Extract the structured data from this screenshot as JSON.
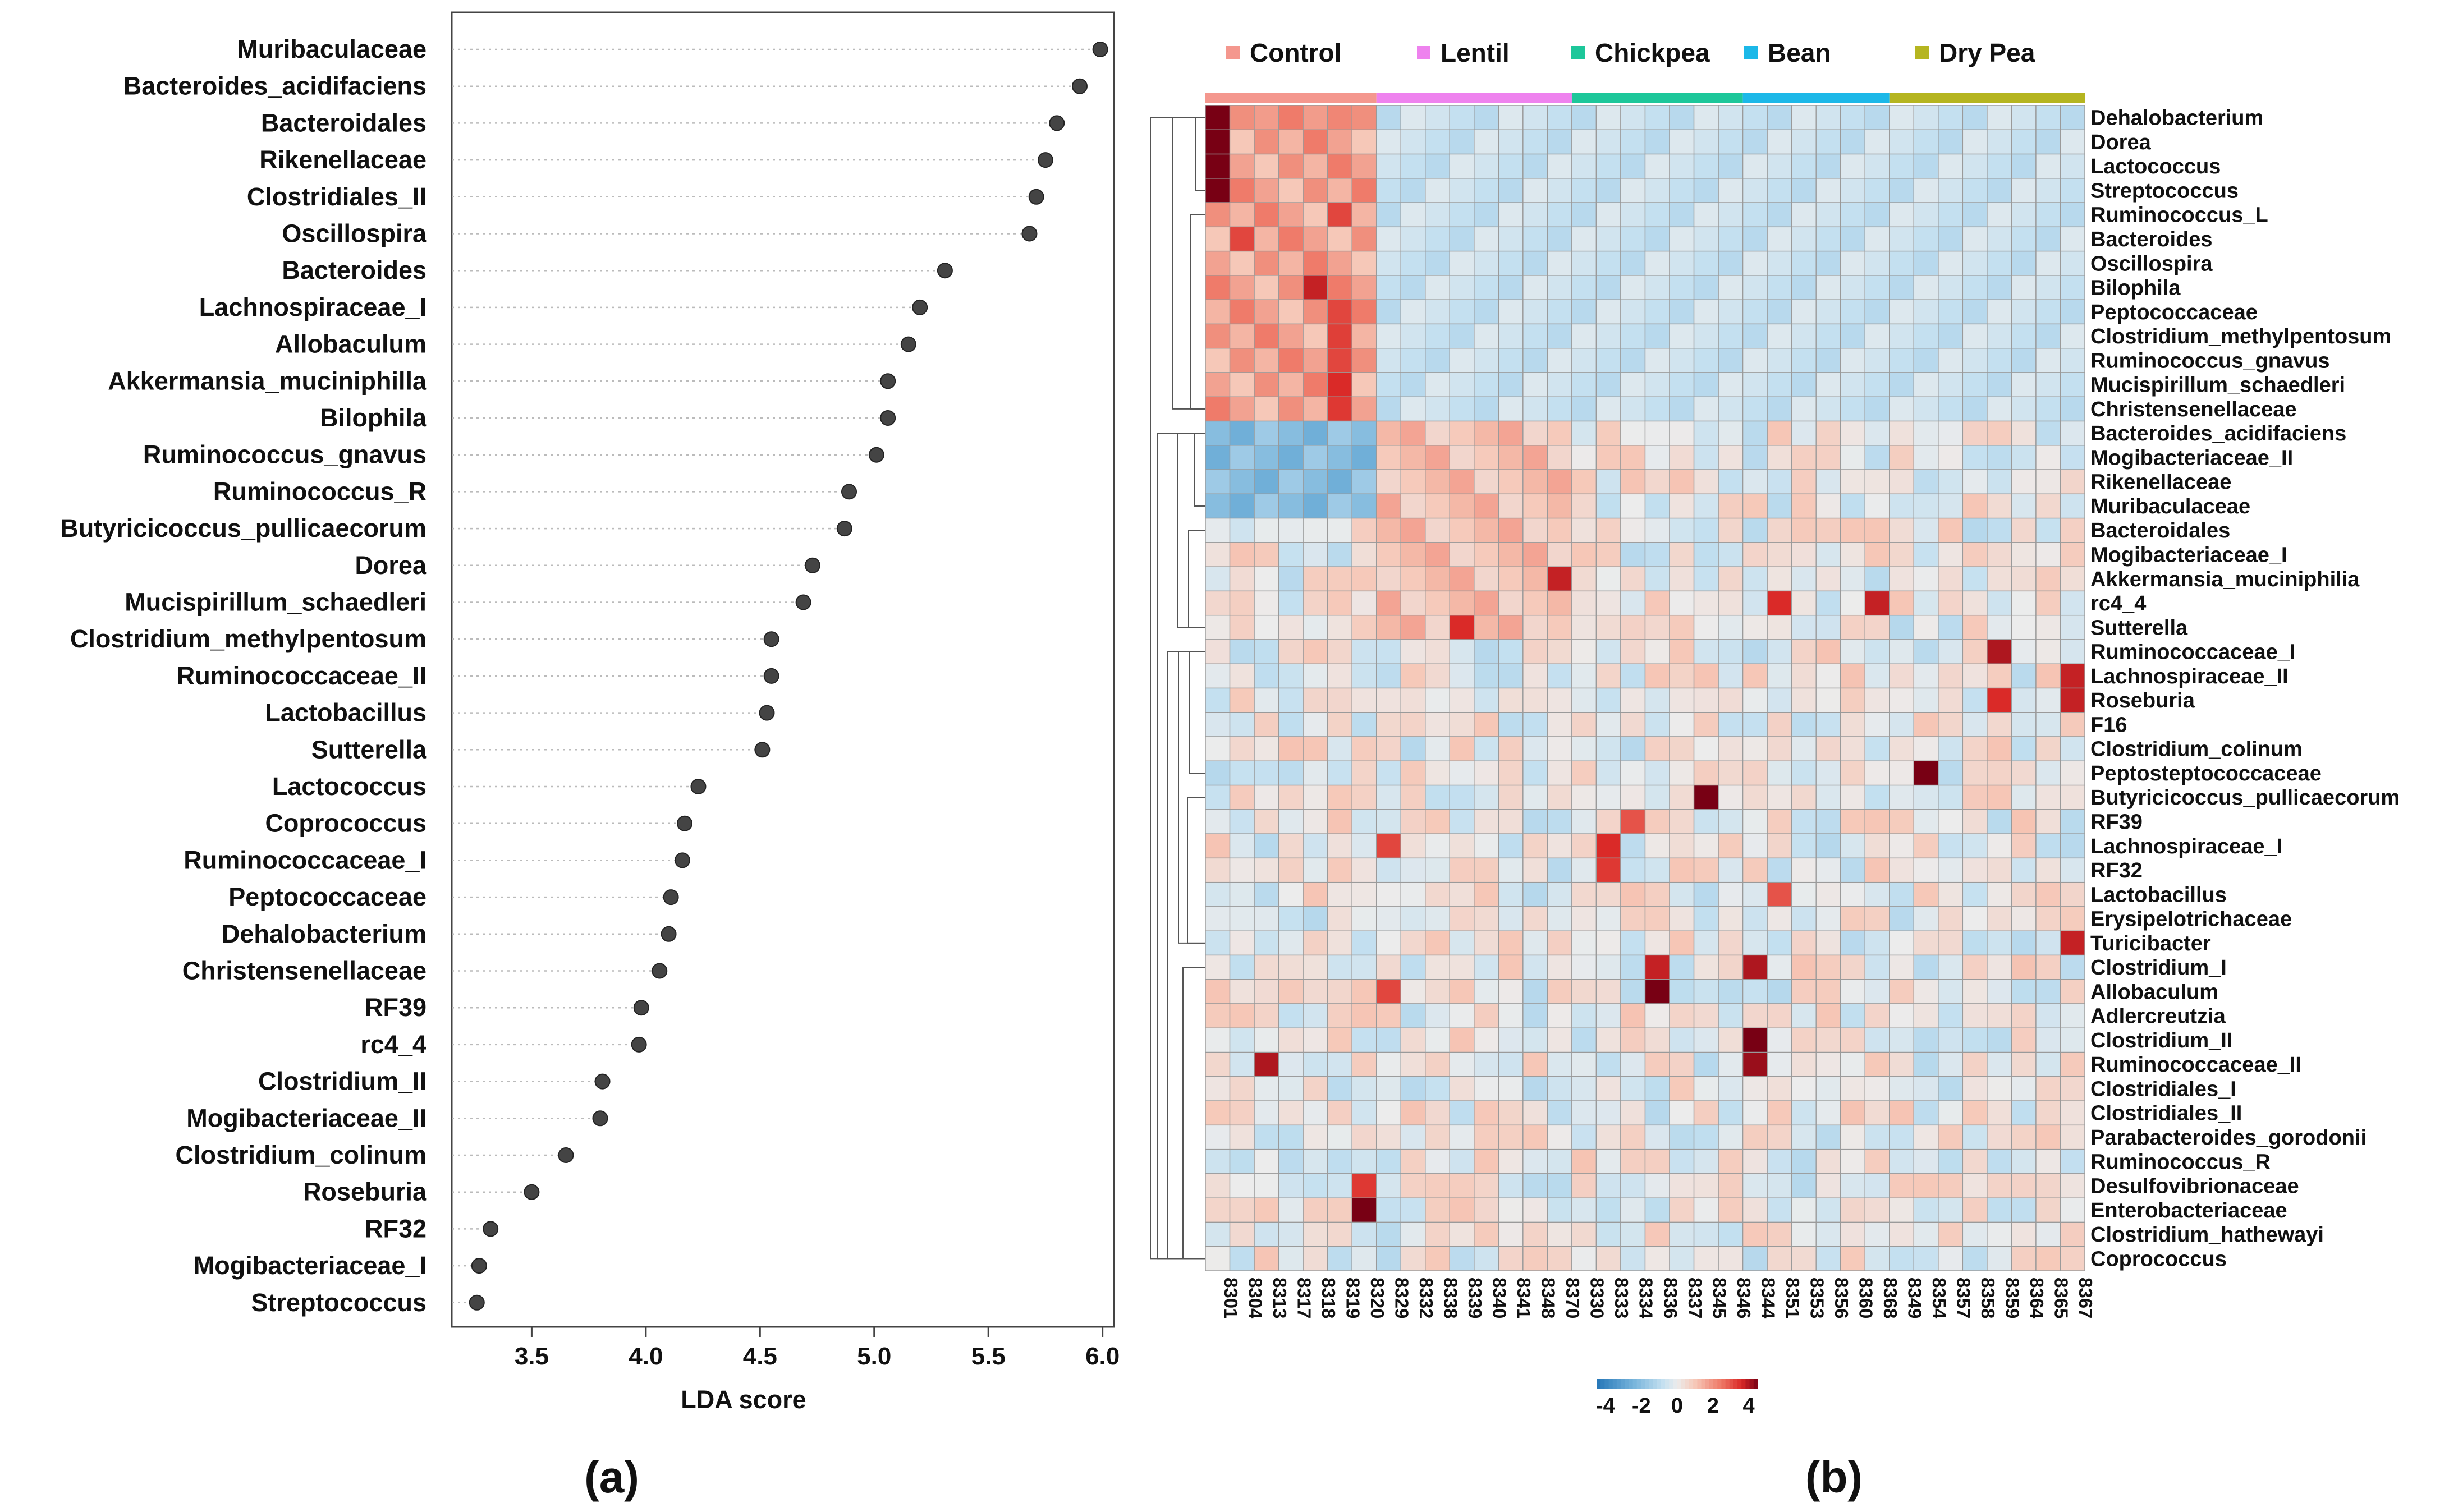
{
  "chart_data": [
    {
      "type": "scatter",
      "panel_label": "(a)",
      "xlabel": "LDA score",
      "ylabel": "",
      "xlim": [
        3.15,
        6.05
      ],
      "xticks": [
        3.5,
        4.0,
        4.5,
        5.0,
        5.5,
        6.0
      ],
      "xtick_labels": [
        "3.5",
        "4.0",
        "4.5",
        "5.0",
        "5.5",
        "6.0"
      ],
      "categories": [
        "Muribaculaceae",
        "Bacteroides_acidifaciens",
        "Bacteroidales",
        "Rikenellaceae",
        "Clostridiales_II",
        "Oscillospira",
        "Bacteroides",
        "Lachnospiraceae_I",
        "Allobaculum",
        "Akkermansia_muciniphilla",
        "Bilophila",
        "Ruminococcus_gnavus",
        "Ruminococcus_R",
        "Butyricicoccus_pullicaecorum",
        "Dorea",
        "Mucispirillum_schaedleri",
        "Clostridium_methylpentosum",
        "Ruminococcaceae_II",
        "Lactobacillus",
        "Sutterella",
        "Lactococcus",
        "Coprococcus",
        "Ruminococcaceae_I",
        "Peptococcaceae",
        "Dehalobacterium",
        "Christensenellaceae",
        "RF39",
        "rc4_4",
        "Clostridium_II",
        "Mogibacteriaceae_II",
        "Clostridium_colinum",
        "Roseburia",
        "RF32",
        "Mogibacteriaceae_I",
        "Streptococcus"
      ],
      "values": [
        5.99,
        5.9,
        5.8,
        5.75,
        5.71,
        5.68,
        5.31,
        5.2,
        5.15,
        5.06,
        5.06,
        5.01,
        4.89,
        4.87,
        4.73,
        4.69,
        4.55,
        4.55,
        4.53,
        4.51,
        4.23,
        4.17,
        4.16,
        4.11,
        4.1,
        4.06,
        3.98,
        3.97,
        3.81,
        3.8,
        3.65,
        3.5,
        3.32,
        3.27,
        3.26
      ],
      "grid": "horizontal dotted"
    },
    {
      "type": "heatmap",
      "panel_label": "(b)",
      "groups": [
        {
          "name": "Control",
          "color": "#F4978E",
          "n": 7
        },
        {
          "name": "Lentil",
          "color": "#EE82EE",
          "n": 8
        },
        {
          "name": "Chickpea",
          "color": "#1DC79A",
          "n": 7
        },
        {
          "name": "Bean",
          "color": "#1CB8E8",
          "n": 6
        },
        {
          "name": "Dry Pea",
          "color": "#B5B520",
          "n": 8
        }
      ],
      "columns": [
        "8301",
        "8304",
        "8313",
        "8317",
        "8318",
        "8319",
        "8320",
        "8329",
        "8332",
        "8338",
        "8339",
        "8340",
        "8341",
        "8348",
        "8370",
        "8330",
        "8333",
        "8334",
        "8336",
        "8337",
        "8345",
        "8346",
        "8344",
        "8351",
        "8353",
        "8356",
        "8360",
        "8368",
        "8349",
        "8354",
        "8357",
        "8358",
        "8359",
        "8364",
        "8365",
        "8367"
      ],
      "rows": [
        "Dehalobacterium",
        "Dorea",
        "Lactococcus",
        "Streptococcus",
        "Ruminococcus_L",
        "Bacteroides",
        "Oscillospira",
        "Bilophila",
        "Peptococcaceae",
        "Clostridium_methylpentosum",
        "Ruminococcus_gnavus",
        "Mucispirillum_schaedleri",
        "Christensenellaceae",
        "Bacteroides_acidifaciens",
        "Mogibacteriaceae_II",
        "Rikenellaceae",
        "Muribaculaceae",
        "Bacteroidales",
        "Mogibacteriaceae_I",
        "Akkermansia_muciniphilia",
        "rc4_4",
        "Sutterella",
        "Ruminococcaceae_I",
        "Lachnospiraceae_II",
        "Roseburia",
        "F16",
        "Clostridium_colinum",
        "Peptosteptococcaceae",
        "Butyricicoccus_pullicaecorum",
        "RF39",
        "Lachnospiraceae_I",
        "RF32",
        "Lactobacillus",
        "Erysipelotrichaceae",
        "Turicibacter",
        "Clostridium_I",
        "Allobaculum",
        "Adlercreutzia",
        "Clostridium_II",
        "Ruminococcaceae_II",
        "Clostridiales_I",
        "Clostridiales_II",
        "Parabacteroides_gorodonii",
        "Ruminococcus_R",
        "Desulfovibrionaceae",
        "Enterobacteriaceae",
        "Clostridium_hathewayi",
        "Coprococcus"
      ],
      "hotspots": [
        {
          "row": 0,
          "col": 0,
          "v": 4.5
        },
        {
          "row": 1,
          "col": 0,
          "v": 4.5
        },
        {
          "row": 2,
          "col": 0,
          "v": 4.5
        },
        {
          "row": 3,
          "col": 0,
          "v": 4.5
        },
        {
          "row": 0,
          "col": 2,
          "v": 1.8
        },
        {
          "row": 0,
          "col": 4,
          "v": 1.8
        },
        {
          "row": 0,
          "col": 5,
          "v": 2.2
        },
        {
          "row": 4,
          "col": 5,
          "v": 3.2
        },
        {
          "row": 5,
          "col": 1,
          "v": 3.2
        },
        {
          "row": 7,
          "col": 4,
          "v": 3.8
        },
        {
          "row": 8,
          "col": 5,
          "v": 3.2
        },
        {
          "row": 9,
          "col": 5,
          "v": 3.3
        },
        {
          "row": 10,
          "col": 5,
          "v": 3.2
        },
        {
          "row": 11,
          "col": 5,
          "v": 3.6
        },
        {
          "row": 12,
          "col": 5,
          "v": 3.4
        },
        {
          "row": 19,
          "col": 14,
          "v": 3.8
        },
        {
          "row": 20,
          "col": 23,
          "v": 3.6
        },
        {
          "row": 20,
          "col": 27,
          "v": 3.8
        },
        {
          "row": 21,
          "col": 10,
          "v": 3.6
        },
        {
          "row": 22,
          "col": 32,
          "v": 4.0
        },
        {
          "row": 23,
          "col": 35,
          "v": 3.8
        },
        {
          "row": 24,
          "col": 32,
          "v": 3.6
        },
        {
          "row": 24,
          "col": 35,
          "v": 3.8
        },
        {
          "row": 27,
          "col": 29,
          "v": 4.5
        },
        {
          "row": 28,
          "col": 20,
          "v": 4.5
        },
        {
          "row": 29,
          "col": 17,
          "v": 3.0
        },
        {
          "row": 30,
          "col": 16,
          "v": 3.6
        },
        {
          "row": 30,
          "col": 7,
          "v": 3.2
        },
        {
          "row": 31,
          "col": 16,
          "v": 3.4
        },
        {
          "row": 32,
          "col": 23,
          "v": 3.0
        },
        {
          "row": 34,
          "col": 35,
          "v": 3.8
        },
        {
          "row": 35,
          "col": 18,
          "v": 3.8
        },
        {
          "row": 35,
          "col": 22,
          "v": 4.0
        },
        {
          "row": 36,
          "col": 18,
          "v": 4.5
        },
        {
          "row": 36,
          "col": 7,
          "v": 3.2
        },
        {
          "row": 38,
          "col": 22,
          "v": 4.5
        },
        {
          "row": 39,
          "col": 2,
          "v": 4.0
        },
        {
          "row": 39,
          "col": 22,
          "v": 4.2
        },
        {
          "row": 45,
          "col": 6,
          "v": 4.6
        },
        {
          "row": 44,
          "col": 6,
          "v": 3.4
        }
      ],
      "colorbar": {
        "ticks": [
          "-4",
          "-2",
          "0",
          "2",
          "4"
        ],
        "range": [
          -4.5,
          4.5
        ]
      }
    }
  ]
}
